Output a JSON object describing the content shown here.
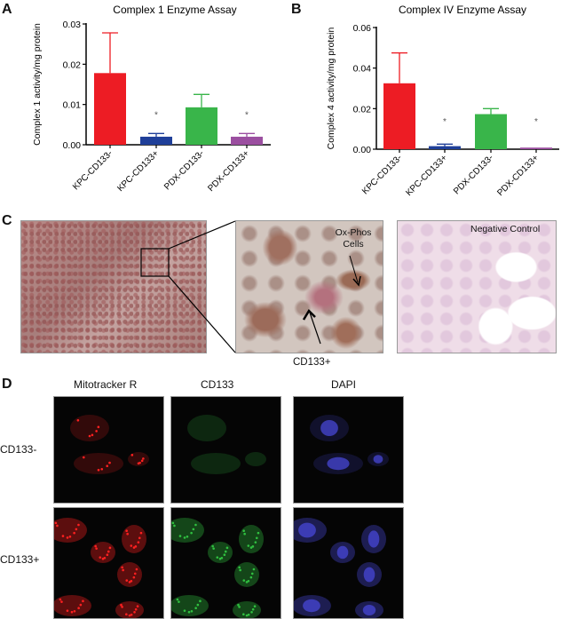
{
  "panels": {
    "a": "A",
    "b": "B",
    "c": "C",
    "d": "D"
  },
  "chart_data": [
    {
      "type": "bar",
      "title": "Complex 1 Enzyme Assay",
      "ylabel": "Complex 1 activity/mg protein",
      "xlabel": "",
      "categories": [
        "KPC-CD133-",
        "KPC-CD133+",
        "PDX-CD133-",
        "PDX-CD133+"
      ],
      "values": [
        0.0178,
        0.002,
        0.0093,
        0.002
      ],
      "error_upper": [
        0.0278,
        0.0028,
        0.0125,
        0.0028
      ],
      "significance": [
        "",
        "*",
        "",
        "*"
      ],
      "colors": [
        "#ed1c24",
        "#1f3f99",
        "#39b54a",
        "#9b4fa0"
      ],
      "ylim": [
        0,
        0.03
      ],
      "yticks": [
        "0.00",
        "0.01",
        "0.02",
        "0.03"
      ],
      "grid": false
    },
    {
      "type": "bar",
      "title": "Complex IV Enzyme Assay",
      "ylabel": "Complex 4 activity/mg protein",
      "xlabel": "",
      "categories": [
        "KPC-CD133-",
        "KPC-CD133+",
        "PDX-CD133-",
        "PDX-CD133+"
      ],
      "values": [
        0.0325,
        0.0015,
        0.0173,
        0.0008
      ],
      "error_upper": [
        0.0475,
        0.0025,
        0.02,
        0.0008
      ],
      "significance": [
        "",
        "*",
        "",
        "*"
      ],
      "colors": [
        "#ed1c24",
        "#1f3f99",
        "#39b54a",
        "#9b4fa0"
      ],
      "ylim": [
        0,
        0.06
      ],
      "yticks": [
        "0.00",
        "0.02",
        "0.04",
        "0.06"
      ],
      "grid": false
    }
  ],
  "panel_c": {
    "ox_phos_label": "Ox-Phos Cells",
    "cd133_label": "CD133+",
    "negative_control_label": "Negative Control"
  },
  "panel_d": {
    "columns": [
      "Mitotracker R",
      "CD133",
      "DAPI"
    ],
    "rows": [
      "CD133-",
      "CD133+"
    ],
    "channel_colors": [
      "#ff2020",
      "#30c040",
      "#4a4ae0"
    ]
  }
}
